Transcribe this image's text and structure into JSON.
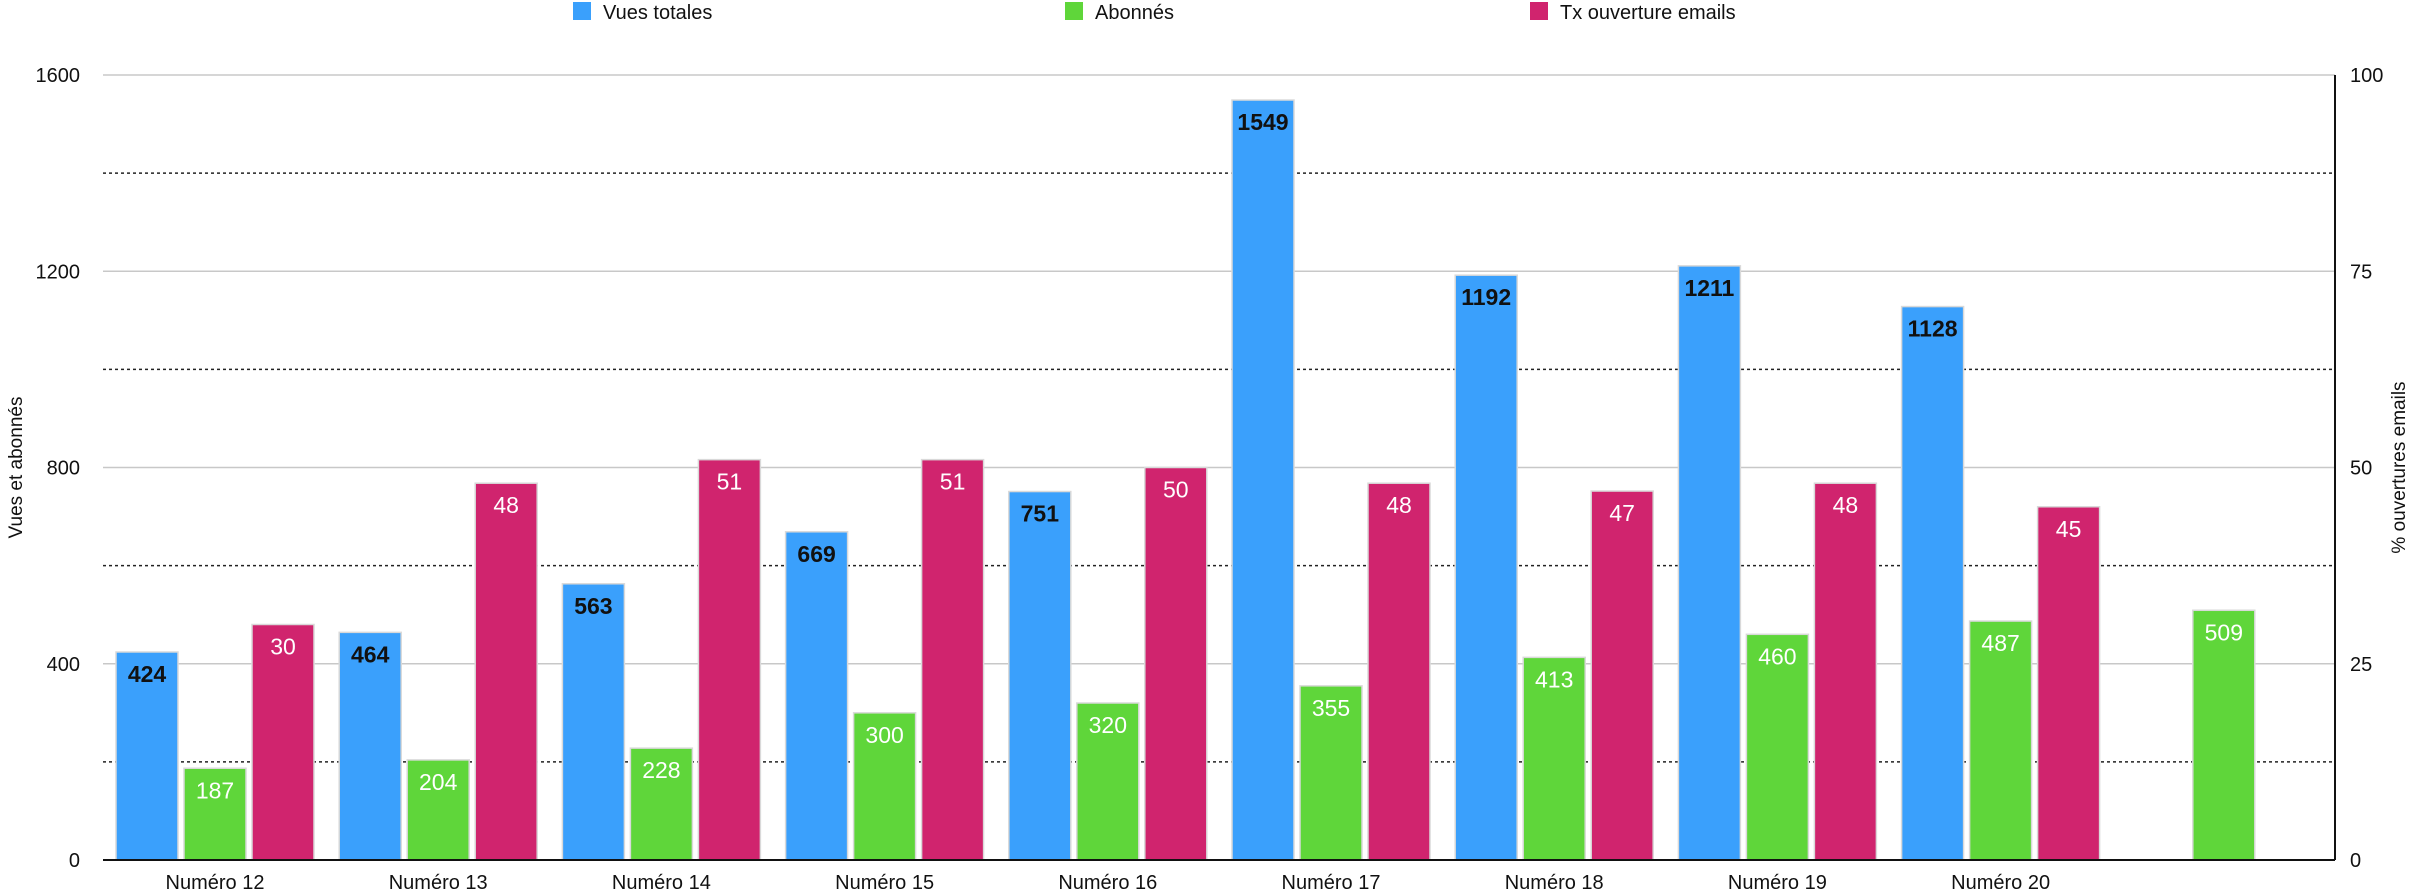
{
  "chart_data": {
    "type": "bar",
    "categories": [
      "Numéro 12",
      "Numéro 13",
      "Numéro 14",
      "Numéro 15",
      "Numéro 16",
      "Numéro 17",
      "Numéro 18",
      "Numéro 19",
      "Numéro 20",
      ""
    ],
    "series": [
      {
        "name": "Vues totales",
        "axis": "left",
        "color": "#3aa0fc",
        "values": [
          424,
          464,
          563,
          669,
          751,
          1549,
          1192,
          1211,
          1128,
          null
        ]
      },
      {
        "name": "Abonnés",
        "axis": "left",
        "color": "#5fd63a",
        "values": [
          187,
          204,
          228,
          300,
          320,
          355,
          413,
          460,
          487,
          509
        ]
      },
      {
        "name": "Tx ouverture emails",
        "axis": "right",
        "color": "#d0246e",
        "values": [
          30,
          48,
          51,
          51,
          50,
          48,
          47,
          48,
          45,
          null
        ]
      }
    ],
    "ylabel": "Vues et abonnés",
    "y2label": "% ouvertures emails",
    "ylim": [
      0,
      1600
    ],
    "y2lim": [
      0,
      100
    ],
    "yticks": [
      0,
      400,
      800,
      1200,
      1600
    ],
    "y2ticks": [
      0,
      25,
      50,
      75,
      100
    ],
    "grid": "solid major, dotted minor",
    "legend": "top-center"
  }
}
